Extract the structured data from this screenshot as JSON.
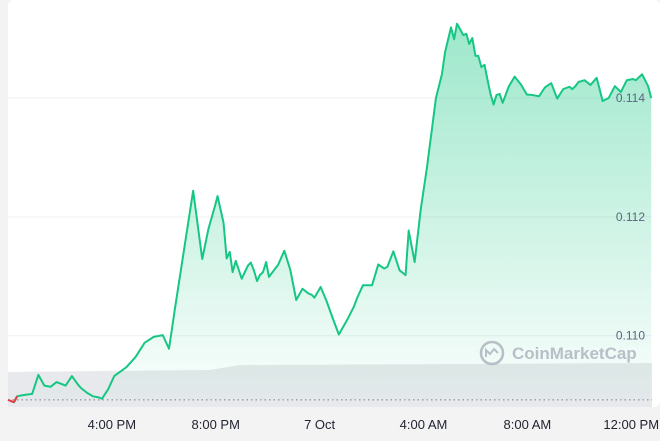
{
  "chart_data": {
    "type": "area",
    "title": "",
    "xlabel": "",
    "ylabel": "",
    "y_ticks": [
      "0.110",
      "0.112",
      "0.114"
    ],
    "y_tick_values": [
      0.11,
      0.112,
      0.114
    ],
    "ylim": [
      0.1088,
      0.11565
    ],
    "reference_value": 0.10892,
    "x_tick_labels": [
      "4:00 PM",
      "8:00 PM",
      "7 Oct",
      "4:00 AM",
      "8:00 AM",
      "12:00 PM"
    ],
    "x_tick_hours": [
      4,
      8,
      12,
      16,
      20,
      24
    ],
    "x_range_hours": [
      0,
      24.8
    ],
    "grid": true,
    "colors": {
      "line_up": "#16c784",
      "line_down": "#ea3943",
      "reference": "#777e90",
      "volume": "#e8e9ec"
    },
    "watermark": "CoinMarketCap",
    "series": [
      {
        "x": [
          0.0,
          0.23,
          0.35,
          0.58,
          0.93,
          1.17,
          1.4,
          1.64,
          1.87,
          2.22,
          2.46,
          2.69,
          2.81,
          3.04,
          3.27,
          3.51,
          3.62,
          3.86,
          4.09,
          4.56,
          4.91,
          5.26,
          5.61,
          5.96,
          6.2,
          6.43,
          6.78,
          7.13,
          7.48,
          7.72,
          7.95,
          8.07,
          8.3,
          8.42,
          8.54,
          8.65,
          8.77,
          9.0,
          9.24,
          9.35,
          9.47,
          9.59,
          9.7,
          9.82,
          9.94,
          10.05,
          10.29,
          10.4,
          10.64,
          10.87,
          11.1,
          11.34,
          11.57,
          11.69,
          11.8,
          12.04,
          12.27,
          12.5,
          12.74,
          13.09,
          13.32,
          13.44,
          13.67,
          14.02,
          14.26,
          14.49,
          14.61,
          14.84,
          15.08,
          15.31,
          15.43,
          15.66,
          15.89,
          16.13,
          16.48,
          16.71,
          16.83,
          17.06,
          17.18,
          17.29,
          17.41,
          17.53,
          17.65,
          17.76,
          17.88,
          18.0,
          18.11,
          18.23,
          18.35,
          18.46,
          18.58,
          18.7,
          18.81,
          18.93,
          19.05,
          19.28,
          19.51,
          19.75,
          19.98,
          20.21,
          20.45,
          20.68,
          20.92,
          21.15,
          21.38,
          21.62,
          21.73,
          21.85,
          21.97,
          22.2,
          22.43,
          22.67,
          22.9,
          23.13,
          23.37,
          23.6,
          23.83,
          24.07,
          24.18,
          24.42,
          24.65,
          24.77
        ],
        "values": [
          0.10892,
          0.10888,
          0.10898,
          0.109,
          0.10902,
          0.10934,
          0.10916,
          0.10914,
          0.10922,
          0.10916,
          0.10932,
          0.10918,
          0.10912,
          0.10904,
          0.10898,
          0.10896,
          0.10894,
          0.1091,
          0.10932,
          0.10947,
          0.10964,
          0.10988,
          0.10998,
          0.11001,
          0.10978,
          0.11046,
          0.11145,
          0.11244,
          0.11129,
          0.1118,
          0.11215,
          0.11235,
          0.1119,
          0.1113,
          0.11141,
          0.11107,
          0.11126,
          0.11096,
          0.11118,
          0.11123,
          0.1111,
          0.11092,
          0.11102,
          0.11107,
          0.11124,
          0.11099,
          0.11113,
          0.11119,
          0.11143,
          0.11111,
          0.1106,
          0.11079,
          0.11071,
          0.11069,
          0.11064,
          0.11082,
          0.11058,
          0.1103,
          0.11002,
          0.11029,
          0.11049,
          0.11063,
          0.11085,
          0.11085,
          0.1112,
          0.11113,
          0.11116,
          0.11142,
          0.1111,
          0.11102,
          0.11177,
          0.11124,
          0.11211,
          0.11282,
          0.114,
          0.1144,
          0.11477,
          0.11519,
          0.11499,
          0.11525,
          0.11516,
          0.11506,
          0.11508,
          0.11491,
          0.11501,
          0.11471,
          0.11471,
          0.11452,
          0.11456,
          0.11432,
          0.11407,
          0.11389,
          0.11405,
          0.11407,
          0.11392,
          0.11419,
          0.11436,
          0.11423,
          0.11406,
          0.11405,
          0.11403,
          0.11418,
          0.11425,
          0.11399,
          0.11415,
          0.11419,
          0.11415,
          0.1142,
          0.11427,
          0.1143,
          0.11422,
          0.11434,
          0.11395,
          0.114,
          0.1142,
          0.1141,
          0.1143,
          0.11432,
          0.1143,
          0.1144,
          0.1142,
          0.114
        ]
      }
    ]
  }
}
